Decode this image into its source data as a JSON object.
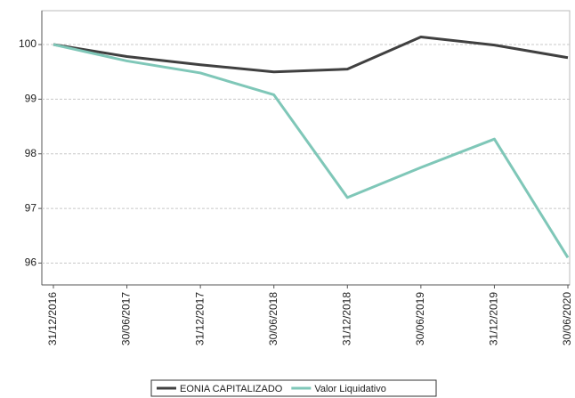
{
  "chart_data": {
    "type": "line",
    "categories": [
      "31/12/2016",
      "30/06/2017",
      "31/12/2017",
      "30/06/2018",
      "31/12/2018",
      "30/06/2019",
      "31/12/2019",
      "30/06/2020"
    ],
    "series": [
      {
        "name": "EONIA CAPITALIZADO",
        "color": "#404040",
        "values": [
          100,
          99.78,
          99.63,
          99.5,
          99.55,
          100.14,
          99.99,
          99.76
        ]
      },
      {
        "name": "Valor Liquidativo",
        "color": "#7fc7b8",
        "values": [
          100,
          99.7,
          99.48,
          99.08,
          97.2,
          97.75,
          98.27,
          96.1
        ]
      }
    ],
    "ylim": [
      95.6,
      100.62
    ],
    "yticks": [
      96,
      97,
      98,
      99,
      100
    ],
    "grid": true
  }
}
